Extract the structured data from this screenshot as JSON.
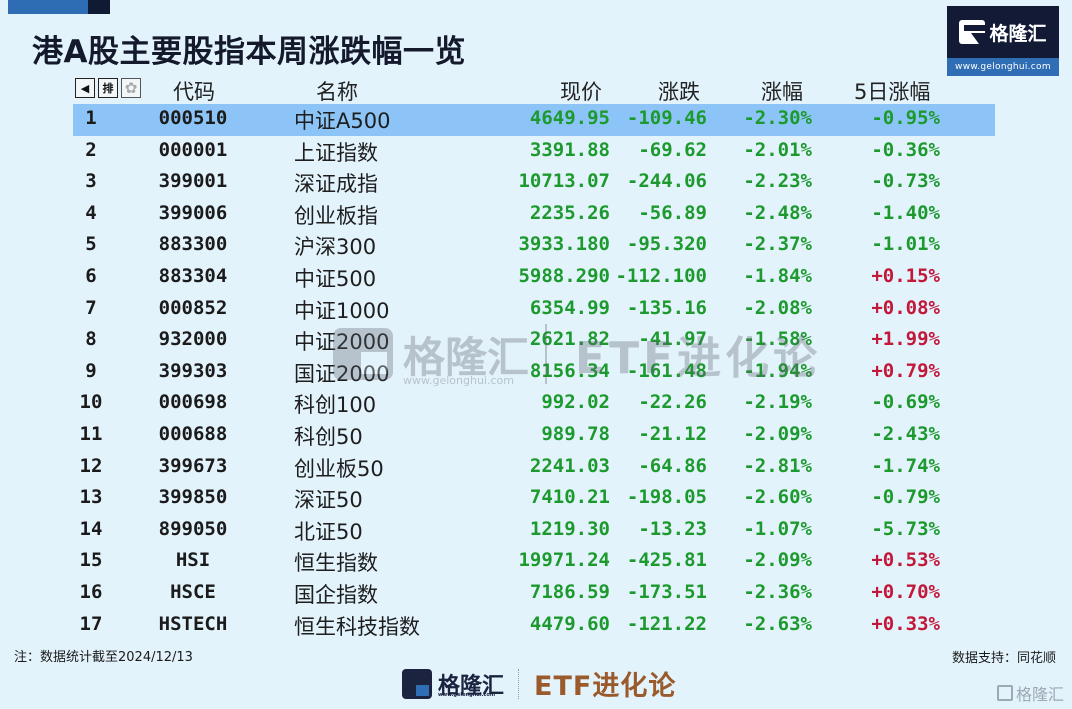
{
  "header": {
    "title": "港A股主要股指本周涨跌幅一览",
    "brand_name": "格隆汇",
    "brand_url": "www.gelonghui.com"
  },
  "table": {
    "toolbar_icons": [
      "arrow-left-icon",
      "sort-icon",
      "gear-icon"
    ],
    "toolbar_labels": {
      "sort": "排",
      "arrow": "◀",
      "gear": "✿"
    },
    "columns": {
      "code": "代码",
      "name": "名称",
      "price": "现价",
      "change": "涨跌",
      "pct": "涨幅",
      "pct5d": "5日涨幅"
    },
    "selected_row": 0,
    "rows": [
      {
        "idx": "1",
        "code": "000510",
        "name": "中证A500",
        "price": "4649.95",
        "change": "-109.46",
        "pct": "-2.30%",
        "pct5d": "-0.95%",
        "dir5d": "neg"
      },
      {
        "idx": "2",
        "code": "000001",
        "name": "上证指数",
        "price": "3391.88",
        "change": "-69.62",
        "pct": "-2.01%",
        "pct5d": "-0.36%",
        "dir5d": "neg"
      },
      {
        "idx": "3",
        "code": "399001",
        "name": "深证成指",
        "price": "10713.07",
        "change": "-244.06",
        "pct": "-2.23%",
        "pct5d": "-0.73%",
        "dir5d": "neg"
      },
      {
        "idx": "4",
        "code": "399006",
        "name": "创业板指",
        "price": "2235.26",
        "change": "-56.89",
        "pct": "-2.48%",
        "pct5d": "-1.40%",
        "dir5d": "neg"
      },
      {
        "idx": "5",
        "code": "883300",
        "name": "沪深300",
        "price": "3933.180",
        "change": "-95.320",
        "pct": "-2.37%",
        "pct5d": "-1.01%",
        "dir5d": "neg"
      },
      {
        "idx": "6",
        "code": "883304",
        "name": "中证500",
        "price": "5988.290",
        "change": "-112.100",
        "pct": "-1.84%",
        "pct5d": "+0.15%",
        "dir5d": "pos"
      },
      {
        "idx": "7",
        "code": "000852",
        "name": "中证1000",
        "price": "6354.99",
        "change": "-135.16",
        "pct": "-2.08%",
        "pct5d": "+0.08%",
        "dir5d": "pos"
      },
      {
        "idx": "8",
        "code": "932000",
        "name": "中证2000",
        "price": "2621.82",
        "change": "-41.97",
        "pct": "-1.58%",
        "pct5d": "+1.99%",
        "dir5d": "pos"
      },
      {
        "idx": "9",
        "code": "399303",
        "name": "国证2000",
        "price": "8156.34",
        "change": "-161.48",
        "pct": "-1.94%",
        "pct5d": "+0.79%",
        "dir5d": "pos"
      },
      {
        "idx": "10",
        "code": "000698",
        "name": "科创100",
        "price": "992.02",
        "change": "-22.26",
        "pct": "-2.19%",
        "pct5d": "-0.69%",
        "dir5d": "neg"
      },
      {
        "idx": "11",
        "code": "000688",
        "name": "科创50",
        "price": "989.78",
        "change": "-21.12",
        "pct": "-2.09%",
        "pct5d": "-2.43%",
        "dir5d": "neg"
      },
      {
        "idx": "12",
        "code": "399673",
        "name": "创业板50",
        "price": "2241.03",
        "change": "-64.86",
        "pct": "-2.81%",
        "pct5d": "-1.74%",
        "dir5d": "neg"
      },
      {
        "idx": "13",
        "code": "399850",
        "name": "深证50",
        "price": "7410.21",
        "change": "-198.05",
        "pct": "-2.60%",
        "pct5d": "-0.79%",
        "dir5d": "neg"
      },
      {
        "idx": "14",
        "code": "899050",
        "name": "北证50",
        "price": "1219.30",
        "change": "-13.23",
        "pct": "-1.07%",
        "pct5d": "-5.73%",
        "dir5d": "neg"
      },
      {
        "idx": "15",
        "code": "HSI",
        "name": "恒生指数",
        "price": "19971.24",
        "change": "-425.81",
        "pct": "-2.09%",
        "pct5d": "+0.53%",
        "dir5d": "pos"
      },
      {
        "idx": "16",
        "code": "HSCE",
        "name": "国企指数",
        "price": "7186.59",
        "change": "-173.51",
        "pct": "-2.36%",
        "pct5d": "+0.70%",
        "dir5d": "pos"
      },
      {
        "idx": "17",
        "code": "HSTECH",
        "name": "恒生科技指数",
        "price": "4479.60",
        "change": "-121.22",
        "pct": "-2.63%",
        "pct5d": "+0.33%",
        "dir5d": "pos"
      }
    ]
  },
  "watermark": {
    "brand": "格隆汇",
    "url": "www.gelonghui.com",
    "series": "ETF进化论"
  },
  "footer": {
    "note": "注：数据统计截至2024/12/13",
    "source": "数据支持：同花顺",
    "brand": "格隆汇",
    "brand_url": "www.gelonghui.com",
    "series": "ETF进化论",
    "corner_mark": "格隆汇"
  },
  "colors": {
    "background": "#e3f3fc",
    "selected_row": "#8cc4f7",
    "down_green": "#1d9a2e",
    "up_red": "#c2183a",
    "brand_navy": "#121a36",
    "brand_blue": "#2f6eb5",
    "series_brown": "#9a5a2c"
  }
}
